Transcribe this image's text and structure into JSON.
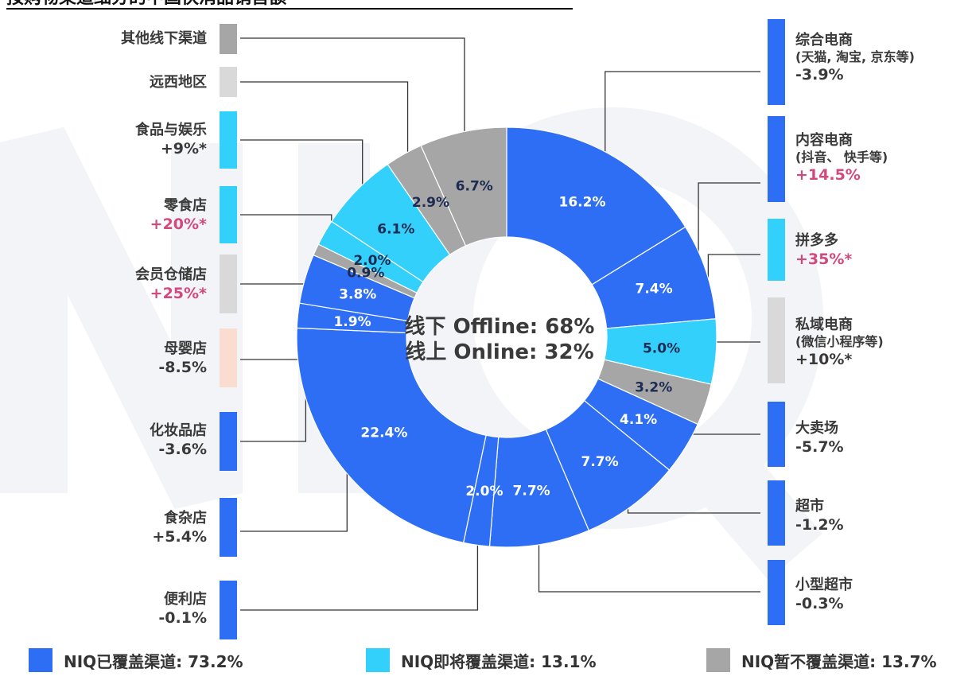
{
  "title": "按购物渠道细分的中国快消品销售额",
  "center_text": [
    "线下 Offline: 68%",
    "线上 Online: 32%"
  ],
  "colors": {
    "covered": "#2e6ef5",
    "soon": "#33d0fb",
    "not": "#a6a6a6",
    "notlight": "#d9d9d9",
    "baby": "#fbdcd0",
    "hot": "#d2497e",
    "gray_text": "#3a3a3a"
  },
  "chart_data": {
    "type": "pie",
    "donut": true,
    "slices": [
      {
        "label": "综合电商",
        "value": 16.2,
        "group": "covered"
      },
      {
        "label": "内容电商",
        "value": 7.4,
        "group": "covered"
      },
      {
        "label": "拼多多",
        "value": 5.0,
        "group": "soon"
      },
      {
        "label": "私域电商",
        "value": 3.2,
        "group": "not"
      },
      {
        "label": "大卖场",
        "value": 4.1,
        "group": "covered"
      },
      {
        "label": "超市",
        "value": 7.7,
        "group": "covered"
      },
      {
        "label": "小型超市",
        "value": 7.7,
        "group": "covered"
      },
      {
        "label": "便利店",
        "value": 2.0,
        "group": "covered"
      },
      {
        "label": "食杂店",
        "value": 22.4,
        "group": "covered"
      },
      {
        "label": "化妆品店",
        "value": 1.9,
        "group": "covered"
      },
      {
        "label": "母婴店",
        "value": 3.8,
        "group": "covered"
      },
      {
        "label": "会员仓储店",
        "value": 0.9,
        "group": "not"
      },
      {
        "label": "零食店",
        "value": 2.0,
        "group": "soon"
      },
      {
        "label": "食品与娱乐",
        "value": 6.1,
        "group": "soon"
      },
      {
        "label": "远西地区",
        "value": 2.9,
        "group": "not"
      },
      {
        "label": "其他线下渠道",
        "value": 6.7,
        "group": "not"
      }
    ],
    "value_labels": [
      "16.2%",
      "7.4%",
      "5.0%",
      "3.2%",
      "4.1%",
      "7.7%",
      "7.7%",
      "2.0%",
      "22.4%",
      "1.9%",
      "3.8%",
      "0.9%",
      "2.0%",
      "6.1%",
      "2.9%",
      "6.7%"
    ],
    "legend": [
      {
        "label": "NIQ已覆盖渠道:  73.2%",
        "group": "covered"
      },
      {
        "label": "NIQ即将覆盖渠道:  13.1%",
        "group": "soon"
      },
      {
        "label": "NIQ暂不覆盖渠道:  13.7%",
        "group": "not"
      }
    ]
  },
  "channels_left": [
    {
      "name": "其他线下渠道",
      "sub": "",
      "change": "",
      "bar": "not",
      "hot": false
    },
    {
      "name": "远西地区",
      "sub": "",
      "change": "",
      "bar": "notlight",
      "hot": false
    },
    {
      "name": "食品与娱乐",
      "sub": "",
      "change": "+9%*",
      "bar": "soon",
      "hot": false
    },
    {
      "name": "零食店",
      "sub": "",
      "change": "+20%*",
      "bar": "soon",
      "hot": true
    },
    {
      "name": "会员仓储店",
      "sub": "",
      "change": "+25%*",
      "bar": "notlight",
      "hot": true
    },
    {
      "name": "母婴店",
      "sub": "",
      "change": "-8.5%",
      "bar": "baby",
      "hot": false
    },
    {
      "name": "化妆品店",
      "sub": "",
      "change": "-3.6%",
      "bar": "covered",
      "hot": false
    },
    {
      "name": "食杂店",
      "sub": "",
      "change": "+5.4%",
      "bar": "covered",
      "hot": false
    },
    {
      "name": "便利店",
      "sub": "",
      "change": "-0.1%",
      "bar": "covered",
      "hot": false
    }
  ],
  "channels_right": [
    {
      "name": "综合电商",
      "sub": "(天猫, 淘宝, 京东等)",
      "change": "-3.9%",
      "bar": "covered",
      "hot": false
    },
    {
      "name": "内容电商",
      "sub": "(抖音、 快手等)",
      "change": "+14.5%",
      "bar": "covered",
      "hot": true
    },
    {
      "name": "拼多多",
      "sub": "",
      "change": "+35%*",
      "bar": "soon",
      "hot": true
    },
    {
      "name": "私域电商",
      "sub": "(微信小程序等)",
      "change": "+10%*",
      "bar": "notlight",
      "hot": false
    },
    {
      "name": "大卖场",
      "sub": "",
      "change": "-5.7%",
      "bar": "covered",
      "hot": false
    },
    {
      "name": "超市",
      "sub": "",
      "change": "-1.2%",
      "bar": "covered",
      "hot": false
    },
    {
      "name": "小型超市",
      "sub": "",
      "change": "-0.3%",
      "bar": "covered",
      "hot": false
    }
  ]
}
